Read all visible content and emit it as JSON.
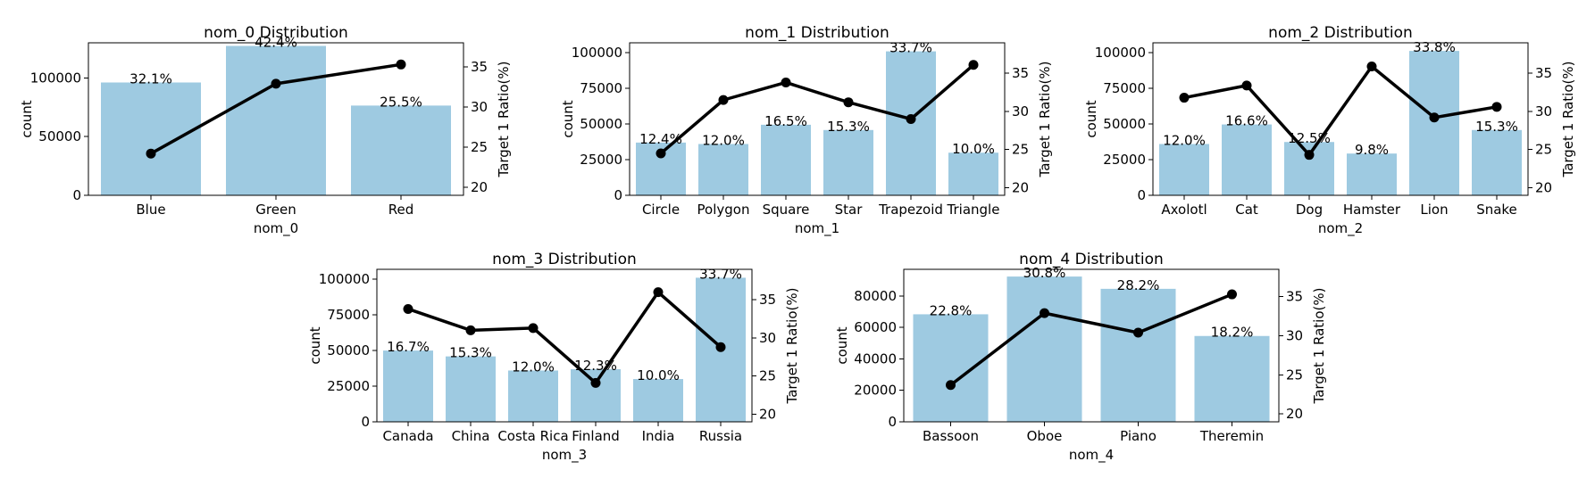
{
  "chart_data": [
    {
      "type": "bar",
      "title": "nom_0 Distribution",
      "xlabel": "nom_0",
      "ylabel": "count",
      "y2label": "Target 1 Ratio(%)",
      "categories": [
        "Blue",
        "Green",
        "Red"
      ],
      "values": [
        96166,
        127341,
        76493
      ],
      "percent_labels": [
        "32.1%",
        "42.4%",
        "25.5%"
      ],
      "ratio": [
        24.2,
        32.9,
        35.3
      ],
      "ylim": [
        0,
        130000
      ],
      "yticks": [
        0,
        50000,
        100000
      ],
      "y2lim": [
        19,
        38
      ],
      "y2ticks": [
        20,
        25,
        30,
        35
      ],
      "bar_color": "#9ecae1",
      "line_color": "#000000"
    },
    {
      "type": "bar",
      "title": "nom_1 Distribution",
      "xlabel": "nom_1",
      "ylabel": "count",
      "y2label": "Target 1 Ratio(%)",
      "categories": [
        "Circle",
        "Polygon",
        "Square",
        "Star",
        "Trapezoid",
        "Triangle"
      ],
      "values": [
        37000,
        36000,
        49500,
        45800,
        101000,
        29900
      ],
      "percent_labels": [
        "12.4%",
        "12.0%",
        "16.5%",
        "15.3%",
        "33.7%",
        "10.0%"
      ],
      "ratio": [
        24.5,
        31.5,
        33.8,
        31.2,
        29.0,
        36.1
      ],
      "ylim": [
        0,
        107000
      ],
      "yticks": [
        0,
        25000,
        50000,
        75000,
        100000
      ],
      "y2lim": [
        19,
        39
      ],
      "y2ticks": [
        20,
        25,
        30,
        35
      ],
      "bar_color": "#9ecae1",
      "line_color": "#000000"
    },
    {
      "type": "bar",
      "title": "nom_2 Distribution",
      "xlabel": "nom_2",
      "ylabel": "count",
      "y2label": "Target 1 Ratio(%)",
      "categories": [
        "Axolotl",
        "Cat",
        "Dog",
        "Hamster",
        "Lion",
        "Snake"
      ],
      "values": [
        36000,
        49700,
        37400,
        29300,
        101300,
        45800
      ],
      "percent_labels": [
        "12.0%",
        "16.6%",
        "12.5%",
        "9.8%",
        "33.8%",
        "15.3%"
      ],
      "ratio": [
        31.8,
        33.4,
        24.3,
        35.9,
        29.2,
        30.6
      ],
      "ylim": [
        0,
        107000
      ],
      "yticks": [
        0,
        25000,
        50000,
        75000,
        100000
      ],
      "y2lim": [
        19,
        39
      ],
      "y2ticks": [
        20,
        25,
        30,
        35
      ],
      "bar_color": "#9ecae1",
      "line_color": "#000000"
    },
    {
      "type": "bar",
      "title": "nom_3 Distribution",
      "xlabel": "nom_3",
      "ylabel": "count",
      "y2label": "Target 1 Ratio(%)",
      "categories": [
        "Canada",
        "China",
        "Costa Rica",
        "Finland",
        "India",
        "Russia"
      ],
      "values": [
        50000,
        45900,
        36000,
        36900,
        30000,
        101100
      ],
      "percent_labels": [
        "16.7%",
        "15.3%",
        "12.0%",
        "12.3%",
        "10.0%",
        "33.7%"
      ],
      "ratio": [
        33.8,
        31.0,
        31.3,
        24.1,
        36.0,
        28.8
      ],
      "ylim": [
        0,
        107000
      ],
      "yticks": [
        0,
        25000,
        50000,
        75000,
        100000
      ],
      "y2lim": [
        19,
        39
      ],
      "y2ticks": [
        20,
        25,
        30,
        35
      ],
      "bar_color": "#9ecae1",
      "line_color": "#000000"
    },
    {
      "type": "bar",
      "title": "nom_4 Distribution",
      "xlabel": "nom_4",
      "ylabel": "count",
      "y2label": "Target 1 Ratio(%)",
      "categories": [
        "Bassoon",
        "Oboe",
        "Piano",
        "Theremin"
      ],
      "values": [
        68400,
        92400,
        84600,
        54600
      ],
      "percent_labels": [
        "22.8%",
        "30.8%",
        "28.2%",
        "18.2%"
      ],
      "ratio": [
        23.7,
        32.9,
        30.4,
        35.3
      ],
      "ylim": [
        0,
        97000
      ],
      "yticks": [
        0,
        20000,
        40000,
        60000,
        80000
      ],
      "y2lim": [
        19,
        38.5
      ],
      "y2ticks": [
        20,
        25,
        30,
        35
      ],
      "bar_color": "#9ecae1",
      "line_color": "#000000"
    }
  ]
}
